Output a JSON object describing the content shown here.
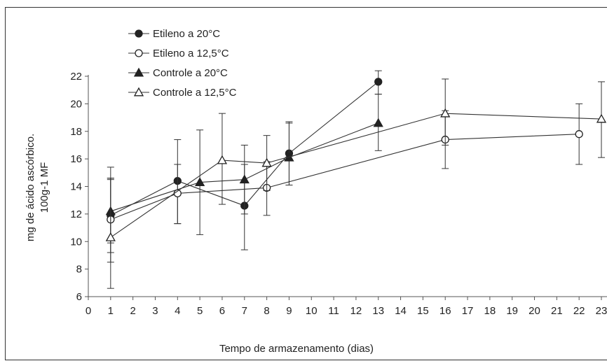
{
  "chart_data": {
    "type": "line",
    "xlabel": "Tempo de armazenamento (dias)",
    "ylabel_lines": [
      "mg de ácido ascórbico.",
      "100g-1 MF"
    ],
    "xlim": [
      0,
      23
    ],
    "ylim": [
      6,
      22
    ],
    "xticks": [
      0,
      1,
      2,
      3,
      4,
      5,
      6,
      7,
      8,
      9,
      10,
      11,
      12,
      13,
      14,
      15,
      16,
      17,
      18,
      19,
      20,
      21,
      22,
      23
    ],
    "yticks": [
      6,
      8,
      10,
      12,
      14,
      16,
      18,
      20,
      22
    ],
    "grid": false,
    "legend": "top-left",
    "series": [
      {
        "name": "Etileno a 20°C",
        "marker": "circle-filled",
        "x": [
          1,
          4,
          7,
          9,
          13
        ],
        "y": [
          11.9,
          14.4,
          12.6,
          16.4,
          21.6
        ],
        "err_low": [
          9.2,
          11.3,
          9.4,
          14.1,
          20.7
        ],
        "err_high": [
          14.6,
          17.4,
          15.6,
          18.7,
          22.4
        ]
      },
      {
        "name": "Etileno a 12,5°C",
        "marker": "circle-open",
        "x": [
          1,
          4,
          8,
          16,
          22
        ],
        "y": [
          11.6,
          13.5,
          13.9,
          17.4,
          17.8
        ],
        "err_low": [
          8.5,
          11.3,
          11.9,
          15.3,
          15.6
        ],
        "err_high": [
          14.6,
          15.6,
          15.8,
          19.5,
          20.0
        ]
      },
      {
        "name": "Controle a 20°C",
        "marker": "triangle-filled",
        "x": [
          1,
          5,
          7,
          9,
          13
        ],
        "y": [
          12.2,
          14.3,
          14.5,
          16.1,
          18.6
        ],
        "err_low": [
          9.9,
          10.5,
          12.0,
          14.1,
          16.6
        ],
        "err_high": [
          14.5,
          18.1,
          17.0,
          18.6,
          20.7
        ]
      },
      {
        "name": "Controle a 12,5°C",
        "marker": "triangle-open",
        "x": [
          1,
          6,
          8,
          16,
          23
        ],
        "y": [
          10.3,
          15.9,
          15.7,
          19.3,
          18.9
        ],
        "err_low": [
          6.6,
          12.7,
          13.7,
          17.0,
          16.1
        ],
        "err_high": [
          15.4,
          19.3,
          17.7,
          21.8,
          21.6
        ]
      }
    ]
  }
}
